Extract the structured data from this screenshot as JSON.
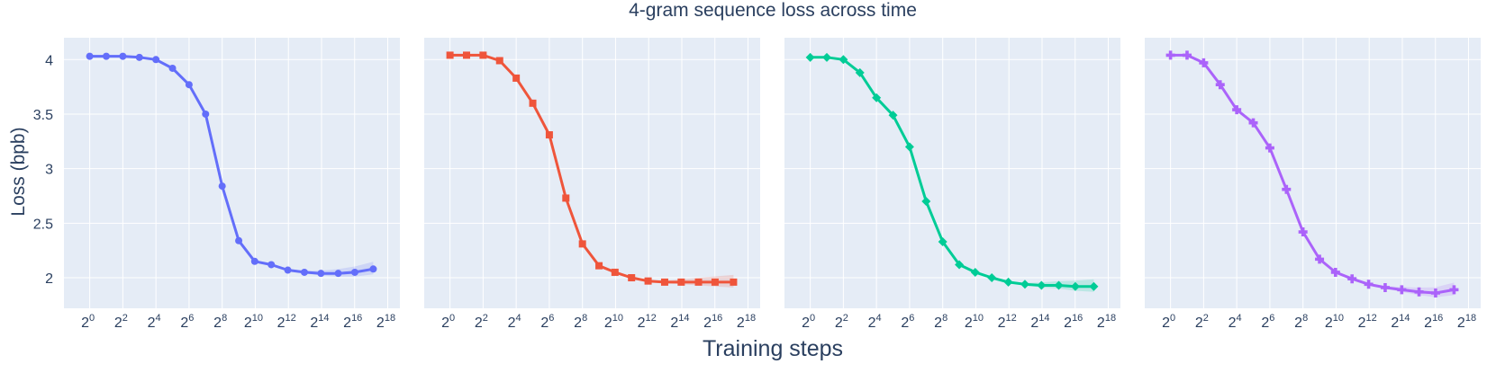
{
  "title": "4-gram sequence loss across time",
  "xlabel": "Training steps",
  "ylabel": "Loss (bpb)",
  "ytick_labels": [
    "2",
    "2.5",
    "3",
    "3.5",
    "4"
  ],
  "xtick_labels": [
    {
      "base": "2",
      "exp": "0"
    },
    {
      "base": "2",
      "exp": "2"
    },
    {
      "base": "2",
      "exp": "4"
    },
    {
      "base": "2",
      "exp": "6"
    },
    {
      "base": "2",
      "exp": "8"
    },
    {
      "base": "2",
      "exp": "10"
    },
    {
      "base": "2",
      "exp": "12"
    },
    {
      "base": "2",
      "exp": "14"
    },
    {
      "base": "2",
      "exp": "16"
    },
    {
      "base": "2",
      "exp": "18"
    }
  ],
  "chart_data": [
    {
      "type": "line",
      "x_scale": "log2",
      "x": [
        1,
        2,
        4,
        8,
        16,
        32,
        64,
        128,
        256,
        512,
        1000,
        2000,
        4000,
        8000,
        16000,
        33000,
        66000,
        143000
      ],
      "y": [
        4.03,
        4.03,
        4.03,
        4.02,
        4.0,
        3.92,
        3.77,
        3.5,
        2.84,
        2.34,
        2.15,
        2.12,
        2.07,
        2.05,
        2.04,
        2.04,
        2.05,
        2.08
      ],
      "marker": "circle",
      "color": "#636efa",
      "ylim": [
        1.72,
        4.2
      ],
      "xlim": [
        0.34,
        436000
      ]
    },
    {
      "type": "line",
      "x_scale": "log2",
      "x": [
        1,
        2,
        4,
        8,
        16,
        32,
        64,
        128,
        256,
        512,
        1000,
        2000,
        4000,
        8000,
        16000,
        33000,
        66000,
        143000
      ],
      "y": [
        4.04,
        4.04,
        4.04,
        3.99,
        3.83,
        3.6,
        3.31,
        2.73,
        2.31,
        2.11,
        2.05,
        2.0,
        1.97,
        1.96,
        1.96,
        1.96,
        1.96,
        1.96
      ],
      "marker": "square",
      "color": "#ef553b",
      "ylim": [
        1.72,
        4.2
      ],
      "xlim": [
        0.34,
        436000
      ]
    },
    {
      "type": "line",
      "x_scale": "log2",
      "x": [
        1,
        2,
        4,
        8,
        16,
        32,
        64,
        128,
        256,
        512,
        1000,
        2000,
        4000,
        8000,
        16000,
        33000,
        66000,
        143000
      ],
      "y": [
        4.02,
        4.02,
        4.0,
        3.88,
        3.65,
        3.49,
        3.2,
        2.7,
        2.33,
        2.12,
        2.05,
        2.0,
        1.96,
        1.94,
        1.93,
        1.93,
        1.92,
        1.92
      ],
      "marker": "diamond",
      "color": "#00cc96",
      "ylim": [
        1.72,
        4.2
      ],
      "xlim": [
        0.34,
        436000
      ]
    },
    {
      "type": "line",
      "x_scale": "log2",
      "x": [
        1,
        2,
        4,
        8,
        16,
        32,
        64,
        128,
        256,
        512,
        1000,
        2000,
        4000,
        8000,
        16000,
        33000,
        66000,
        143000
      ],
      "y": [
        4.04,
        4.04,
        3.97,
        3.77,
        3.54,
        3.42,
        3.19,
        2.81,
        2.42,
        2.17,
        2.05,
        1.99,
        1.94,
        1.91,
        1.89,
        1.87,
        1.86,
        1.89
      ],
      "marker": "cross",
      "color": "#ab63fa",
      "ylim": [
        1.72,
        4.2
      ],
      "xlim": [
        0.34,
        436000
      ]
    }
  ]
}
